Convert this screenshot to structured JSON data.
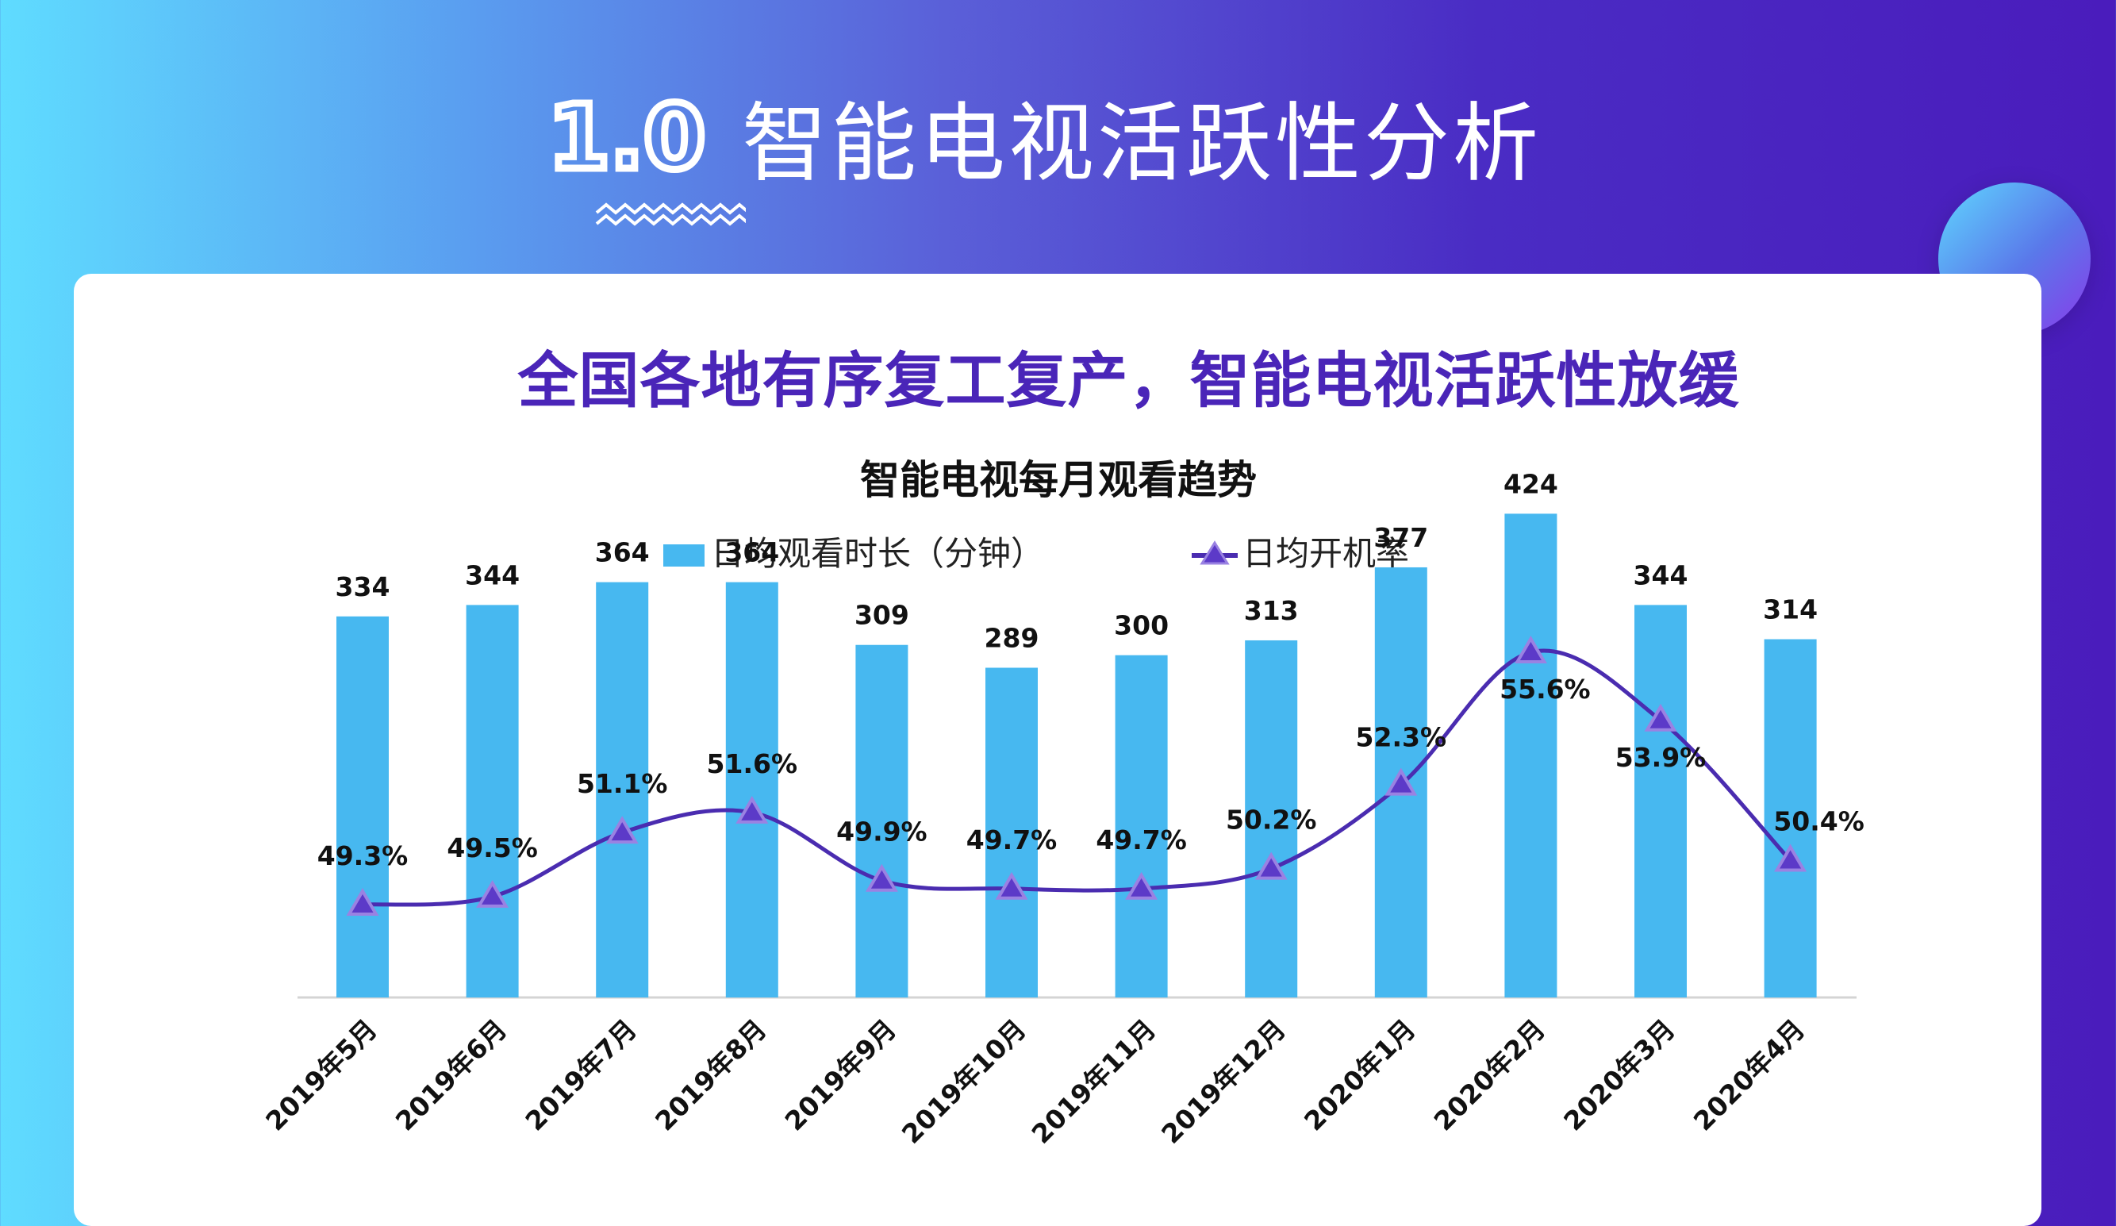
{
  "header": {
    "section_number": "1.0",
    "title": "智能电视活跃性分析"
  },
  "headline": "全国各地有序复工复产，智能电视活跃性放缓",
  "colors": {
    "bar": "#47b8f0",
    "line": "#4a2cb0",
    "marker": "#5c3ac8",
    "headline": "#4a25b8"
  },
  "chart_data": {
    "type": "bar",
    "title": "智能电视每月观看趋势",
    "categories": [
      "2019年5月",
      "2019年6月",
      "2019年7月",
      "2019年8月",
      "2019年9月",
      "2019年10月",
      "2019年11月",
      "2019年12月",
      "2020年1月",
      "2020年2月",
      "2020年3月",
      "2020年4月"
    ],
    "series": [
      {
        "name": "日均观看时长（分钟）",
        "type": "bar",
        "axis": "primary",
        "values": [
          334,
          344,
          364,
          364,
          309,
          289,
          300,
          313,
          377,
          424,
          344,
          314
        ],
        "labels": [
          "334",
          "344",
          "364",
          "364",
          "309",
          "289",
          "300",
          "313",
          "377",
          "424",
          "344",
          "314"
        ]
      },
      {
        "name": "日均开机率",
        "type": "line",
        "axis": "secondary",
        "values": [
          49.3,
          49.5,
          51.1,
          51.6,
          49.9,
          49.7,
          49.7,
          50.2,
          52.3,
          55.6,
          53.9,
          50.4
        ],
        "labels": [
          "49.3%",
          "49.5%",
          "51.1%",
          "51.6%",
          "49.9%",
          "49.7%",
          "49.7%",
          "50.2%",
          "52.3%",
          "55.6%",
          "53.9%",
          "50.4%"
        ]
      }
    ],
    "ylim": [
      0,
      450
    ],
    "y2lim": [
      45,
      57
    ],
    "xlabel": "",
    "ylabel": "",
    "grid": false,
    "legend": "top"
  }
}
